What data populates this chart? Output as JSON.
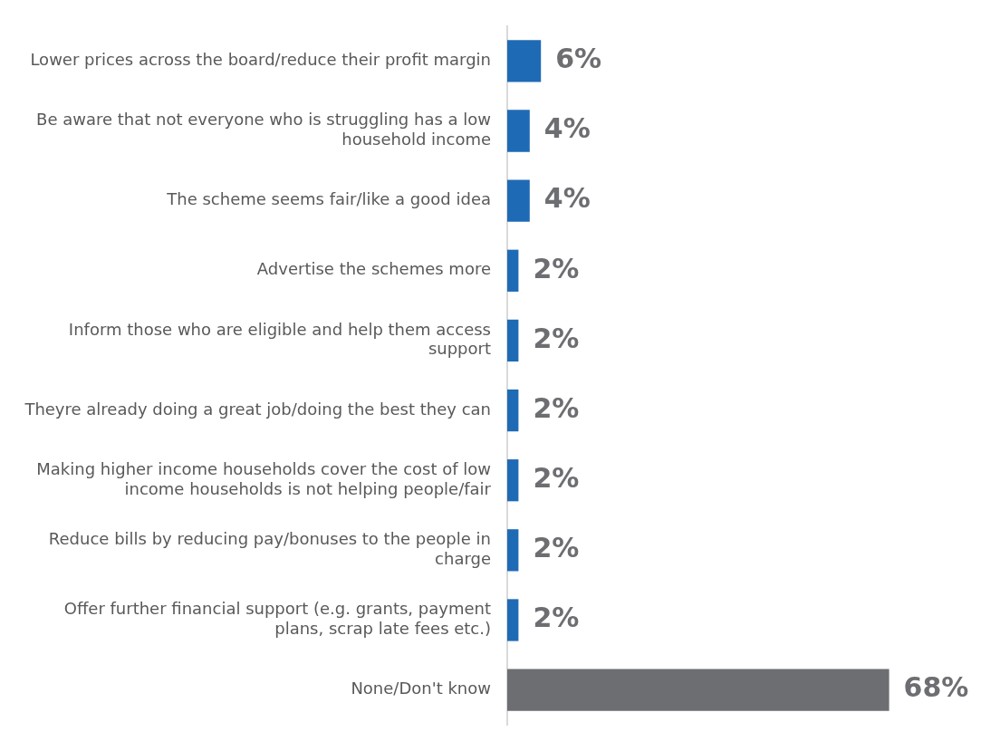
{
  "chart_data": {
    "type": "bar",
    "orientation": "horizontal",
    "categories": [
      "Lower prices across the board/reduce their profit margin",
      "Be aware that not everyone who is struggling has a low household income",
      "The scheme seems fair/like a good idea",
      "Advertise the schemes more",
      "Inform those who are eligible and help them access support",
      "Theyre already doing a great job/doing the best they can",
      "Making higher income households cover the cost of low income households is not helping people/fair",
      "Reduce bills by reducing pay/bonuses to the people in charge",
      "Offer further financial support (e.g. grants, payment plans, scrap late fees etc.)",
      "None/Don't know"
    ],
    "values": [
      6,
      4,
      4,
      2,
      2,
      2,
      2,
      2,
      2,
      68
    ],
    "colors": [
      "#1f6ab5",
      "#1f6ab5",
      "#1f6ab5",
      "#1f6ab5",
      "#1f6ab5",
      "#1f6ab5",
      "#1f6ab5",
      "#1f6ab5",
      "#1f6ab5",
      "#6d6e71"
    ],
    "value_labels": [
      "6%",
      "4%",
      "4%",
      "2%",
      "2%",
      "2%",
      "2%",
      "2%",
      "2%",
      "68%"
    ],
    "grid": false,
    "legend": false,
    "tick_labels": "y"
  }
}
